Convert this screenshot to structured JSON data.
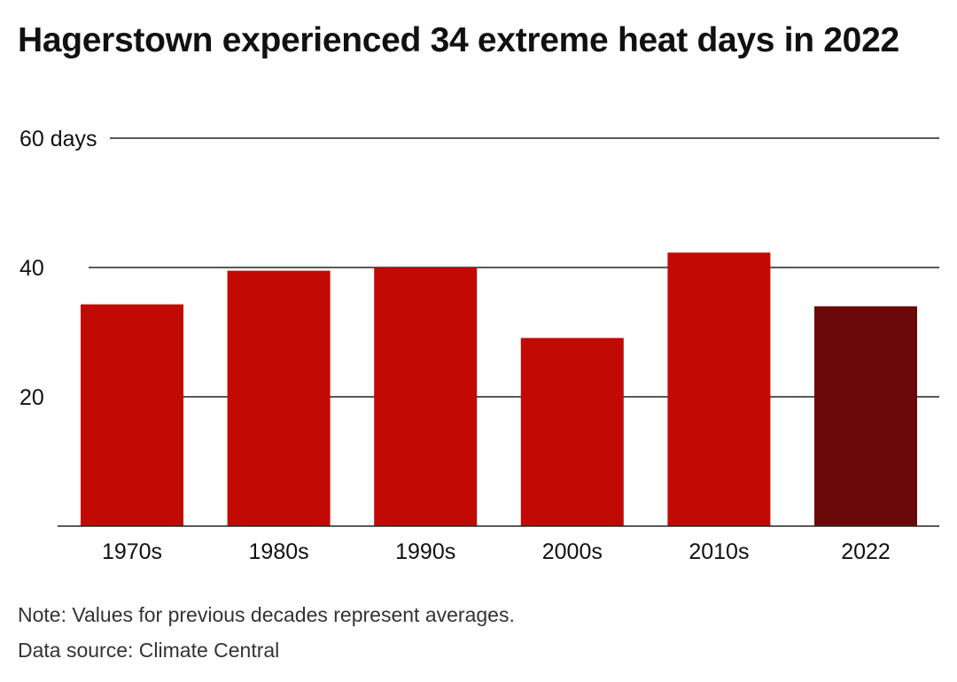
{
  "title": "Hagerstown experienced 34 extreme heat days in 2022",
  "notes": {
    "note": "Note: Values for previous decades represent averages.",
    "source": "Data source: Climate Central"
  },
  "chart_data": {
    "type": "bar",
    "title": "Hagerstown experienced 34 extreme heat days in 2022",
    "xlabel": "",
    "ylabel": "",
    "ylim": [
      0,
      60
    ],
    "yticks": [
      20,
      40,
      60
    ],
    "ytick_labels": [
      "20",
      "40",
      "60 days"
    ],
    "grid": true,
    "categories": [
      "1970s",
      "1980s",
      "1990s",
      "2000s",
      "2010s",
      "2022"
    ],
    "values": [
      34.3,
      39.5,
      40.0,
      29.1,
      42.3,
      34.0
    ],
    "colors": {
      "default": "#c10a04",
      "highlight": "#6a0909",
      "highlight_category": "2022"
    }
  }
}
